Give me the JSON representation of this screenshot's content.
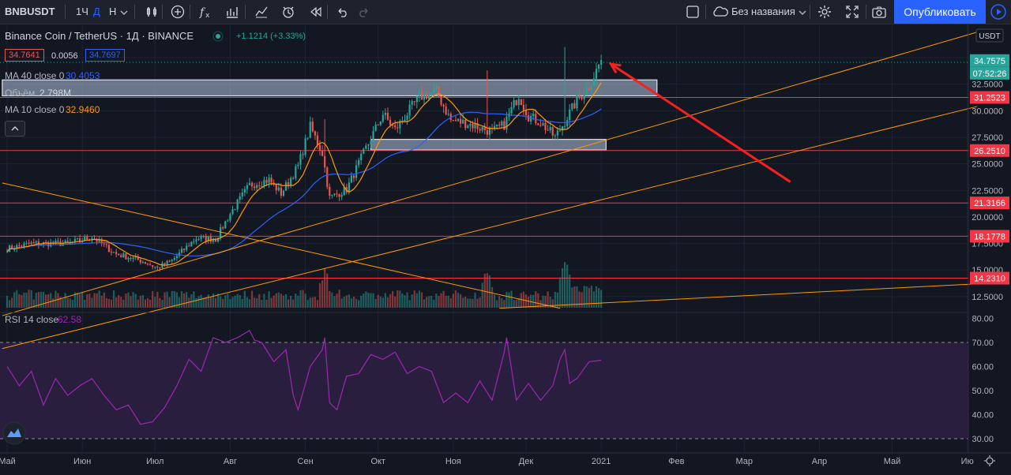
{
  "toolbar": {
    "symbol": "BNBUSDT",
    "intervals": [
      "1Ч",
      "Д",
      "Н"
    ],
    "layout_name": "Без названия",
    "publish_label": "Опубликовать",
    "icons": [
      "bars-icon",
      "plus-circle-icon",
      "function-icon",
      "chart-icon",
      "compare-icon",
      "alert-icon",
      "replay-icon",
      "undo-icon",
      "redo-icon",
      "layout-square-icon",
      "cloud-icon",
      "settings-icon",
      "fullscreen-icon",
      "camera-icon",
      "play-icon"
    ]
  },
  "legend": {
    "title": "Binance Coin / TetherUS · 1Д · BINANCE",
    "change": "+1.1214 (+3.33%)",
    "bid": "34.7641",
    "spread": "0.0056",
    "ask": "34.7697",
    "ma40_label": "MA 40 close 0",
    "ma40_value": "30.4053",
    "volume_label": "Объём",
    "volume_value": "2.798M",
    "ma10_label": "MA 10 close 0",
    "ma10_value": "32.9460",
    "rsi_label": "RSI 14 close",
    "rsi_value": "62.58"
  },
  "colors": {
    "up": "#26a69a",
    "down": "#ef5350",
    "ma40": "#2962ff",
    "ma10": "#ff9800",
    "rsi": "#9c27b0",
    "hline": "#f23645",
    "trend": "#ff9800",
    "zone": "#b2c7e0",
    "arrow": "#f7201e"
  },
  "chart_data": {
    "type": "candlestick",
    "price_axis": {
      "currency": "USDT",
      "ticks": [
        "12.5000",
        "15.0000",
        "17.5000",
        "20.0000",
        "22.5000",
        "25.0000",
        "27.5000",
        "30.0000",
        "32.5000",
        "35.0000"
      ],
      "range": [
        11.3,
        37.9
      ]
    },
    "rsi_axis": {
      "ticks": [
        "30.00",
        "40.00",
        "50.00",
        "60.00",
        "70.00",
        "80.00"
      ],
      "range": [
        28,
        83
      ],
      "bands": [
        30,
        70
      ]
    },
    "time_labels": [
      {
        "label": "Май",
        "day": 0
      },
      {
        "label": "Июн",
        "day": 31
      },
      {
        "label": "Июл",
        "day": 61
      },
      {
        "label": "Авг",
        "day": 92
      },
      {
        "label": "Сен",
        "day": 123
      },
      {
        "label": "Окт",
        "day": 153
      },
      {
        "label": "Ноя",
        "day": 184
      },
      {
        "label": "Дек",
        "day": 214
      },
      {
        "label": "2021",
        "day": 245
      },
      {
        "label": "Фев",
        "day": 276
      },
      {
        "label": "Мар",
        "day": 304
      },
      {
        "label": "Апр",
        "day": 335
      },
      {
        "label": "Май",
        "day": 365
      },
      {
        "label": "Ию",
        "day": 396
      }
    ],
    "last_price": "34.7575",
    "countdown": "07:52:26",
    "horizontal_levels": [
      "31.2523",
      "26.2510",
      "21.3166",
      "18.1778",
      "14.2310"
    ],
    "zones": [
      {
        "day_from": -2,
        "day_to": 268,
        "low": 31.4,
        "high": 32.9
      },
      {
        "day_from": 150,
        "day_to": 247,
        "low": 26.3,
        "high": 27.3
      }
    ],
    "trend_lines": [
      {
        "from": [
          -2,
          23.2
        ],
        "to": [
          228,
          11.4
        ]
      },
      {
        "from": [
          -2,
          10.7
        ],
        "to": [
          400,
          37.4
        ]
      },
      {
        "from": [
          -2,
          7.6
        ],
        "to": [
          400,
          30.4
        ]
      },
      {
        "from": [
          203,
          11.4
        ],
        "to": [
          400,
          13.7
        ]
      }
    ],
    "arrow": {
      "from": [
        323,
        23.3
      ],
      "to": [
        249,
        34.4
      ]
    },
    "volume_unit_note": "",
    "anchors": [
      [
        0,
        17.0
      ],
      [
        10,
        17.5
      ],
      [
        25,
        17.5
      ],
      [
        35,
        18.1
      ],
      [
        45,
        16.5
      ],
      [
        55,
        15.9
      ],
      [
        62,
        15.2
      ],
      [
        68,
        15.9
      ],
      [
        78,
        18.0
      ],
      [
        86,
        17.9
      ],
      [
        92,
        20.3
      ],
      [
        100,
        23.0
      ],
      [
        108,
        23.5
      ],
      [
        113,
        22.2
      ],
      [
        120,
        24.8
      ],
      [
        125,
        28.5
      ],
      [
        130,
        26.0
      ],
      [
        133,
        21.8
      ],
      [
        140,
        22.6
      ],
      [
        147,
        26.0
      ],
      [
        155,
        29.7
      ],
      [
        160,
        28.2
      ],
      [
        170,
        31.3
      ],
      [
        177,
        31.8
      ],
      [
        183,
        29.1
      ],
      [
        190,
        28.8
      ],
      [
        200,
        28.0
      ],
      [
        205,
        28.7
      ],
      [
        211,
        31.5
      ],
      [
        215,
        29.5
      ],
      [
        220,
        28.9
      ],
      [
        226,
        27.5
      ],
      [
        230,
        29.0
      ],
      [
        235,
        31.0
      ],
      [
        240,
        32.3
      ],
      [
        245,
        34.76
      ]
    ],
    "spikes": [
      [
        131,
        29.2
      ],
      [
        198,
        33.8
      ],
      [
        230,
        36.0
      ]
    ],
    "rsi_points": [
      [
        0,
        60
      ],
      [
        5,
        52
      ],
      [
        10,
        58
      ],
      [
        15,
        44
      ],
      [
        20,
        55
      ],
      [
        25,
        48
      ],
      [
        30,
        52
      ],
      [
        35,
        55
      ],
      [
        40,
        48
      ],
      [
        45,
        42
      ],
      [
        50,
        44
      ],
      [
        55,
        36
      ],
      [
        60,
        37
      ],
      [
        65,
        43
      ],
      [
        70,
        52
      ],
      [
        75,
        63
      ],
      [
        80,
        58
      ],
      [
        85,
        72
      ],
      [
        90,
        70
      ],
      [
        95,
        72
      ],
      [
        100,
        75
      ],
      [
        102,
        71
      ],
      [
        105,
        70
      ],
      [
        110,
        62
      ],
      [
        115,
        67
      ],
      [
        118,
        48
      ],
      [
        120,
        42
      ],
      [
        125,
        60
      ],
      [
        130,
        67
      ],
      [
        131,
        72
      ],
      [
        133,
        45
      ],
      [
        136,
        42
      ],
      [
        140,
        56
      ],
      [
        145,
        57
      ],
      [
        150,
        65
      ],
      [
        155,
        63
      ],
      [
        160,
        66
      ],
      [
        165,
        57
      ],
      [
        170,
        60
      ],
      [
        175,
        58
      ],
      [
        180,
        45
      ],
      [
        185,
        49
      ],
      [
        190,
        45
      ],
      [
        195,
        54
      ],
      [
        200,
        46
      ],
      [
        205,
        66
      ],
      [
        206,
        72
      ],
      [
        210,
        46
      ],
      [
        215,
        53
      ],
      [
        220,
        46
      ],
      [
        225,
        52
      ],
      [
        228,
        63
      ],
      [
        230,
        67
      ],
      [
        232,
        53
      ],
      [
        235,
        55
      ],
      [
        240,
        62
      ],
      [
        245,
        62.58
      ]
    ]
  }
}
